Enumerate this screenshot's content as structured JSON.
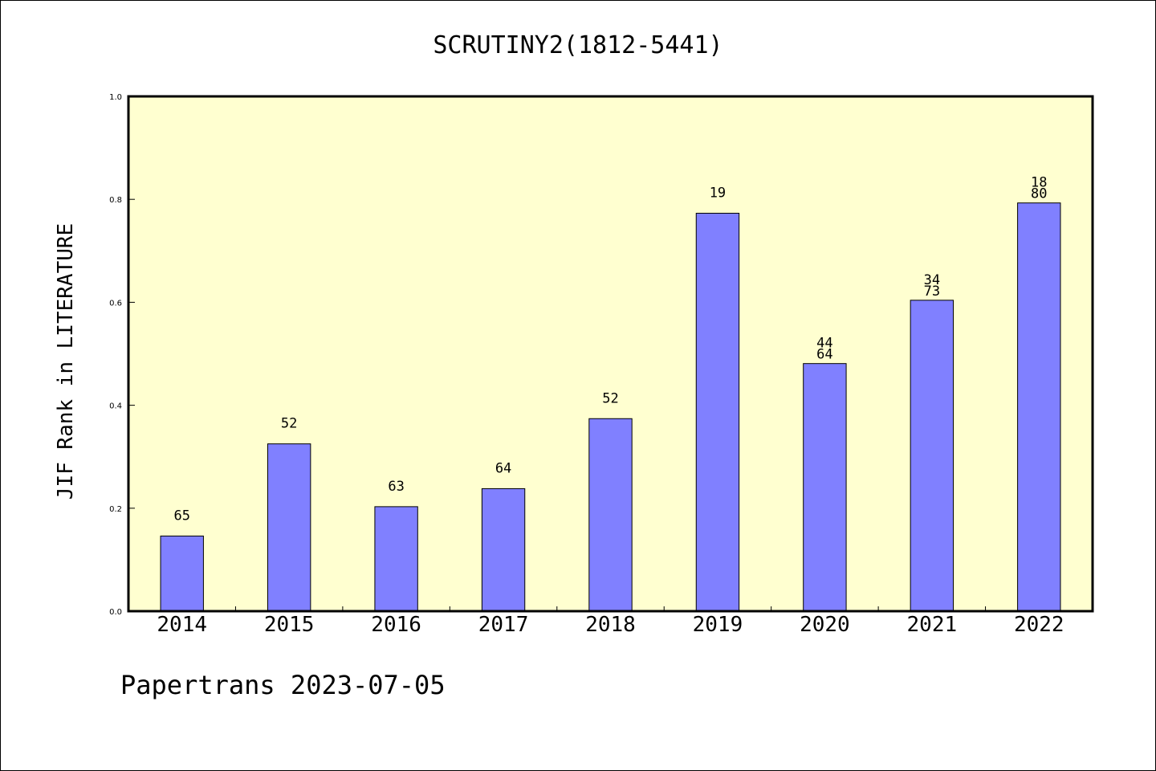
{
  "chart_data": {
    "type": "bar",
    "title": "SCRUTINY2(1812-5441)",
    "xlabel": "",
    "ylabel": "JIF Rank in LITERATURE",
    "ylim": [
      0.0,
      1.0
    ],
    "yticks": [
      "0.0",
      "0.2",
      "0.4",
      "0.6",
      "0.8",
      "1.0"
    ],
    "ytick_values": [
      0.0,
      0.2,
      0.4,
      0.6,
      0.8,
      1.0
    ],
    "categories": [
      "2014",
      "2015",
      "2016",
      "2017",
      "2018",
      "2019",
      "2020",
      "2021",
      "2022"
    ],
    "values": [
      0.146,
      0.325,
      0.203,
      0.238,
      0.374,
      0.773,
      0.481,
      0.604,
      0.793
    ],
    "bar_labels": [
      [
        "65"
      ],
      [
        "52"
      ],
      [
        "63"
      ],
      [
        "64"
      ],
      [
        "52"
      ],
      [
        "19"
      ],
      [
        "44",
        "64"
      ],
      [
        "34",
        "73"
      ],
      [
        "18",
        "80"
      ]
    ],
    "bar_color": "#8080ff",
    "plot_background": "#ffffd0",
    "grid": false,
    "legend": "none"
  },
  "footer": {
    "text": "Papertrans 2023-07-05"
  }
}
